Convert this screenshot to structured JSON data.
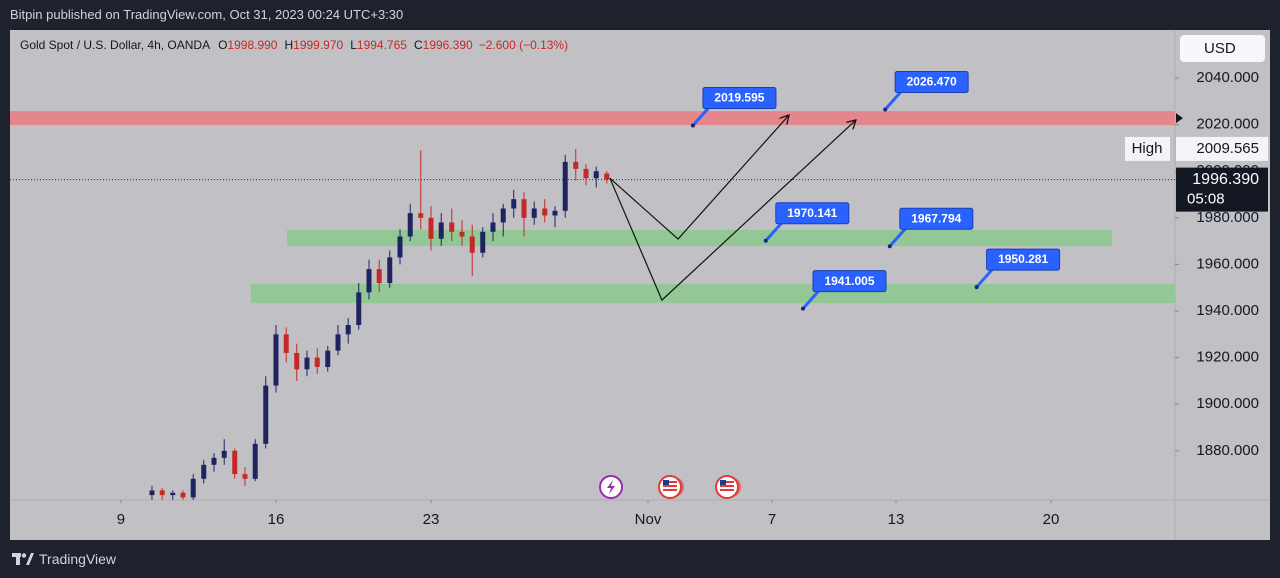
{
  "header": {
    "text": "Bitpin published on TradingView.com, Oct 31, 2023 00:24 UTC+3:30"
  },
  "footer": {
    "brand": "TradingView"
  },
  "chart_data": {
    "type": "candlestick",
    "title": "Gold Spot / U.S. Dollar, 4h, OANDA",
    "legend_values": [
      {
        "key": "O",
        "text": "1998.990"
      },
      {
        "key": "H",
        "text": "1999.970"
      },
      {
        "key": "L",
        "text": "1994.765"
      },
      {
        "key": "C",
        "text": "1996.390"
      }
    ],
    "change": "−2.600 (−0.13%)",
    "currency": "USD",
    "xlim": [
      -3.58,
      34.0
    ],
    "xticks": [
      {
        "value": 0,
        "label": "9"
      },
      {
        "value": 5,
        "label": "16"
      },
      {
        "value": 10,
        "label": "23"
      },
      {
        "value": 17,
        "label": "Nov"
      },
      {
        "value": 21,
        "label": "7"
      },
      {
        "value": 25,
        "label": "13"
      },
      {
        "value": 30,
        "label": "20"
      }
    ],
    "ylim": [
      1858.9,
      2060.6
    ],
    "yticks": [
      {
        "value": 1880,
        "label": "1880.000"
      },
      {
        "value": 1900,
        "label": "1900.000"
      },
      {
        "value": 1920,
        "label": "1920.000"
      },
      {
        "value": 1940,
        "label": "1940.000"
      },
      {
        "value": 1960,
        "label": "1960.000"
      },
      {
        "value": 1980,
        "label": "1980.000"
      },
      {
        "value": 2000,
        "label": "2000.000"
      },
      {
        "value": 2020,
        "label": "2020.000"
      },
      {
        "value": 2040,
        "label": "2040.000"
      }
    ],
    "candles": {
      "up_color": "#1f2461",
      "down_color": "#c62828",
      "x": [
        1.0,
        1.33,
        1.67,
        2.0,
        2.33,
        2.67,
        3.0,
        3.33,
        3.67,
        4.0,
        4.33,
        4.67,
        5.0,
        5.33,
        5.67,
        6.0,
        6.33,
        6.67,
        7.0,
        7.33,
        7.67,
        8.0,
        8.33,
        8.67,
        9.0,
        9.33,
        9.67,
        10.0,
        10.33,
        10.67,
        11.0,
        11.33,
        11.67,
        12.0,
        12.33,
        12.67,
        13.0,
        13.33,
        13.67,
        14.0,
        14.33,
        14.67,
        15.0,
        15.33,
        15.67
      ],
      "open": [
        1861,
        1863,
        1861,
        1862,
        1860,
        1868,
        1874,
        1877,
        1880,
        1870,
        1868,
        1883,
        1908,
        1930,
        1922,
        1915,
        1920,
        1916,
        1923,
        1930,
        1934,
        1948,
        1958,
        1952,
        1963,
        1972,
        1982,
        1980,
        1971,
        1978,
        1974,
        1972,
        1965,
        1974,
        1978,
        1984,
        1988,
        1980,
        1984,
        1981,
        1983,
        2004,
        2001,
        1997,
        1998.99
      ],
      "high": [
        1865,
        1864,
        1863,
        1863,
        1870,
        1876,
        1879,
        1885,
        1881,
        1873,
        1885,
        1912,
        1934,
        1933,
        1926,
        1923,
        1924,
        1925,
        1934,
        1937,
        1952,
        1962,
        1962,
        1966,
        1975,
        1986,
        2009,
        1985,
        1982,
        1984,
        1979,
        1977,
        1976,
        1982,
        1986,
        1992,
        1991,
        1987,
        1988,
        1985,
        2007,
        2009.565,
        2003,
        2002,
        1999.97
      ],
      "low": [
        1859,
        1859,
        1859,
        1859,
        1859,
        1866,
        1871,
        1874,
        1868,
        1865,
        1867,
        1881,
        1905,
        1918,
        1910,
        1912,
        1913,
        1914,
        1921,
        1926,
        1932,
        1945,
        1948,
        1950,
        1960,
        1970,
        1975,
        1966,
        1968,
        1970,
        1968,
        1955,
        1963,
        1970,
        1972,
        1980,
        1972,
        1977,
        1978,
        1976,
        1980,
        1996,
        1994,
        1993,
        1994.765
      ],
      "close": [
        1863,
        1861,
        1862,
        1860,
        1868,
        1874,
        1877,
        1880,
        1870,
        1868,
        1883,
        1908,
        1930,
        1922,
        1915,
        1920,
        1916,
        1923,
        1930,
        1934,
        1948,
        1958,
        1952,
        1963,
        1972,
        1982,
        1980,
        1971,
        1978,
        1974,
        1972,
        1965,
        1974,
        1978,
        1984,
        1988,
        1980,
        1984,
        1981,
        1983,
        2004,
        2001,
        1997,
        2000,
        1996.39
      ]
    },
    "zones": [
      {
        "from": 2019.8,
        "to": 2025.8,
        "x": [
          -3.58,
          34.0
        ],
        "color": "#e3878c"
      },
      {
        "from": 1967.9,
        "to": 1974.8,
        "x": [
          5.35,
          31.97
        ],
        "color": "#93c795"
      },
      {
        "from": 1943.4,
        "to": 1951.6,
        "x": [
          4.19,
          34.0
        ],
        "color": "#93c795"
      }
    ],
    "paths": {
      "color": "#111111",
      "lines": [
        {
          "x": [
            15.77,
            17.97,
            21.55
          ],
          "values": [
            1997,
            1970.9,
            2024.1
          ]
        },
        {
          "x": [
            15.77,
            17.45,
            23.71
          ],
          "values": [
            1997,
            1944.7,
            2022.0
          ]
        }
      ]
    },
    "markers": {
      "color": "#2962ff",
      "x": [
        18.45,
        24.65,
        20.8,
        24.8,
        27.6,
        22.0
      ],
      "values": [
        2019.595,
        2026.47,
        1970.141,
        1967.794,
        1950.281,
        1941.005
      ],
      "value_labels": [
        "2019.595",
        "2026.470",
        "1970.141",
        "1967.794",
        "1950.281",
        "1941.005"
      ]
    },
    "high": {
      "label": "High",
      "value": 2009.565
    },
    "last_price": {
      "value": 1996.39,
      "label": "1996.390",
      "countdown": "05:08"
    }
  }
}
